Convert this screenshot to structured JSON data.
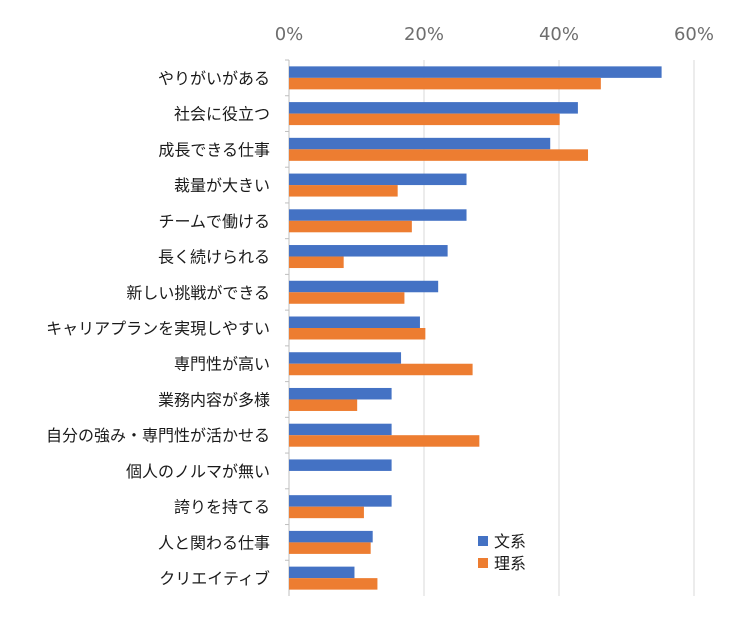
{
  "chart_data": {
    "type": "bar",
    "orientation": "horizontal",
    "categories": [
      "やりがいがある",
      "社会に役立つ",
      "成長できる仕事",
      "裁量が大きい",
      "チームで働ける",
      "長く続けられる",
      "新しい挑戦ができる",
      "キャリアプランを実現しやすい",
      "専門性が高い",
      "業務内容が多様",
      "自分の強み・専門性が活かせる",
      "個人のノルマが無い",
      "誇りを持てる",
      "人と関わる仕事",
      "クリエイティブ"
    ],
    "series": [
      {
        "name": "文系",
        "color": "#4472c4",
        "values": [
          55.2,
          42.8,
          38.7,
          26.3,
          26.3,
          23.5,
          22.1,
          19.4,
          16.6,
          15.2,
          15.2,
          15.2,
          15.2,
          12.4,
          9.7
        ]
      },
      {
        "name": "理系",
        "color": "#ed7d31",
        "values": [
          46.2,
          40.1,
          44.3,
          16.1,
          18.2,
          8.1,
          17.1,
          20.2,
          27.2,
          10.1,
          28.2,
          0,
          11.1,
          12.1,
          13.1
        ]
      }
    ],
    "xlim": [
      0,
      60
    ],
    "x_ticks": [
      "0%",
      "20%",
      "40%",
      "60%"
    ],
    "x_axis_position": "top",
    "grid": true,
    "legend": {
      "position": "bottom-right-inside",
      "entries": [
        "文系",
        "理系"
      ]
    }
  }
}
